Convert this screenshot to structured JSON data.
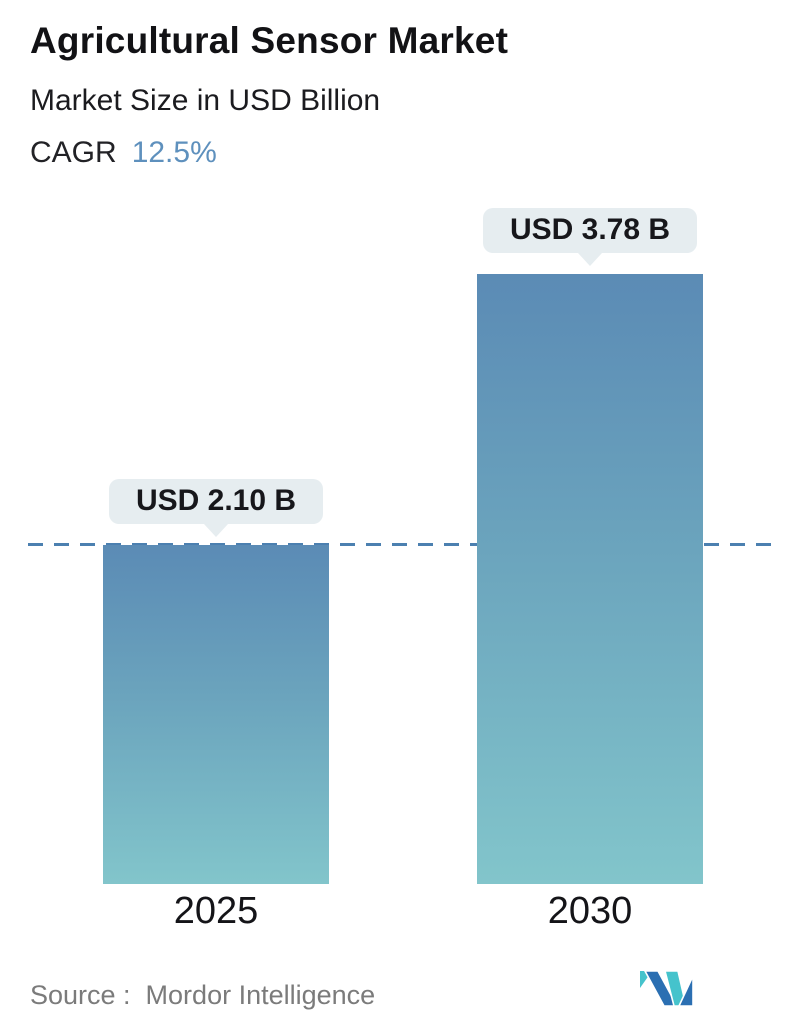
{
  "header": {
    "title": "Agricultural Sensor Market",
    "subtitle": "Market Size in USD Billion",
    "cagr_label": "CAGR",
    "cagr_value": "12.5%"
  },
  "chart_data": {
    "type": "bar",
    "categories": [
      "2025",
      "2030"
    ],
    "values": [
      2.1,
      3.78
    ],
    "value_labels": [
      "USD 2.10 B",
      "USD 3.78 B"
    ],
    "unit": "USD Billion",
    "title": "Agricultural Sensor Market",
    "xlabel": "",
    "ylabel": "Market Size in USD Billion",
    "ylim": [
      0,
      4.3
    ],
    "grid": false,
    "legend": false,
    "baseline_marker": {
      "style": "dashed",
      "at_value": 2.1,
      "color": "#4c80b0"
    },
    "bar_colors": {
      "gradient_top": "#5b8bb5",
      "gradient_bottom": "#82c5cb"
    },
    "label_bubble_color": "#e6edf0"
  },
  "footer": {
    "source_label": "Source :  Mordor Intelligence",
    "logo_name": "mordor-intelligence-logo",
    "logo_colors": {
      "teal": "#45c3cc",
      "blue": "#2b6fb2"
    }
  },
  "colors": {
    "background": "#ffffff",
    "title_text": "#121215",
    "accent_blue": "#5e90bd",
    "source_text": "#7b7b7b"
  }
}
